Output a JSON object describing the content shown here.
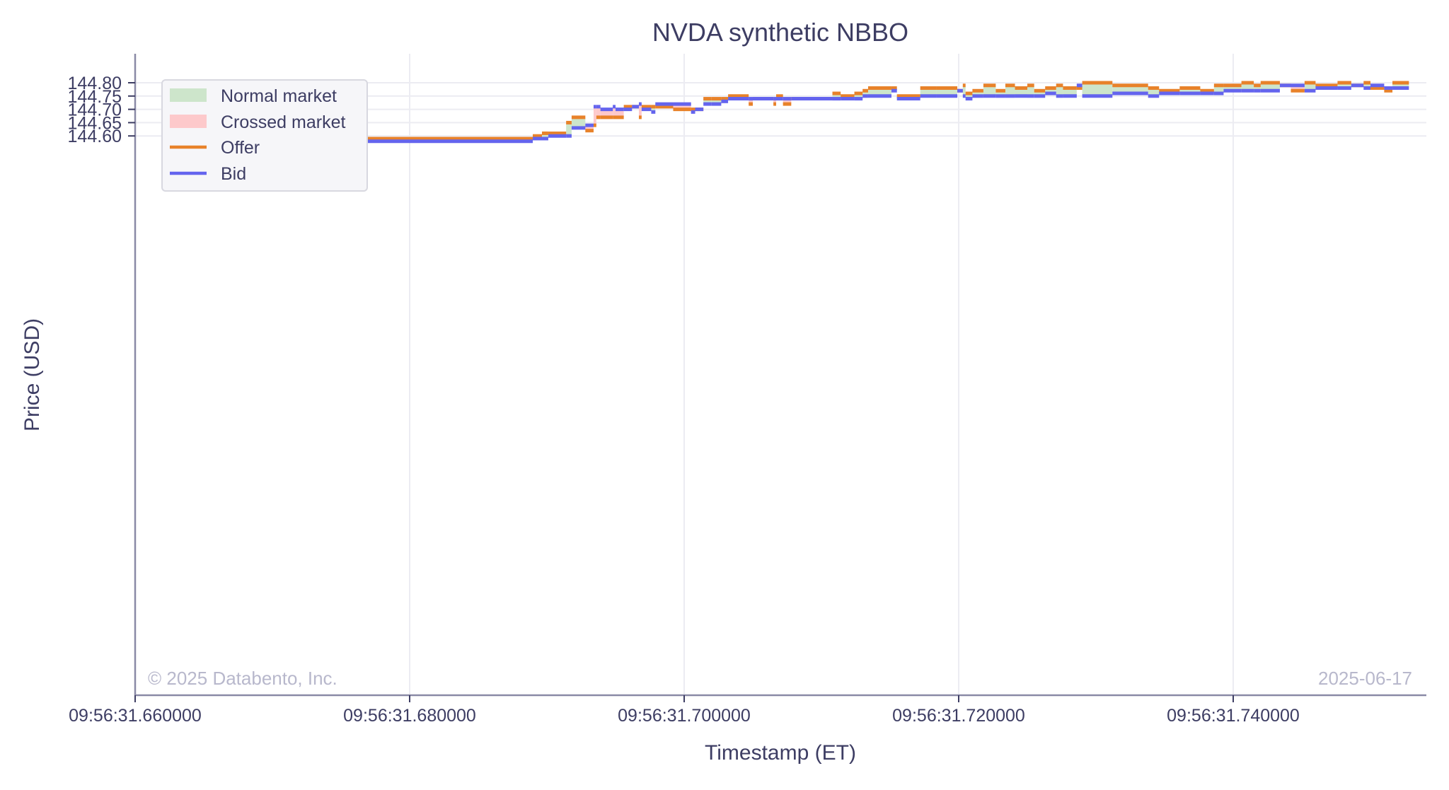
{
  "chart_data": {
    "type": "line",
    "subtype": "step-band",
    "title": "NVDA synthetic NBBO",
    "xlabel": "Timestamp (ET)",
    "ylabel": "Price (USD)",
    "x_ticks": [
      "09:56:31.660000",
      "09:56:31.680000",
      "09:56:31.700000",
      "09:56:31.720000",
      "09:56:31.740000"
    ],
    "x_tick_ms": [
      0,
      20,
      40,
      60,
      80
    ],
    "y_ticks": [
      "144.60",
      "144.65",
      "144.70",
      "144.75",
      "144.80"
    ],
    "y_tick_values": [
      144.6,
      144.65,
      144.7,
      144.75,
      144.8
    ],
    "xlim_ms": [
      0,
      94.2
    ],
    "ylim": [
      144.5655,
      144.8105
    ],
    "grid": true,
    "legend_position": "upper left",
    "legend": [
      {
        "label": "Normal market",
        "kind": "patch",
        "color": "#cde5cb"
      },
      {
        "label": "Crossed market",
        "kind": "patch",
        "color": "#fdc9cb"
      },
      {
        "label": "Offer",
        "kind": "line",
        "color": "#e8822a"
      },
      {
        "label": "Bid",
        "kind": "line",
        "color": "#6464ee"
      }
    ],
    "watermark_left": "© 2025 Databento, Inc.",
    "watermark_right": "2025-06-17",
    "x_origin": "09:56:31.660000",
    "segments_note": "[start_ms, end_ms, bid, offer] offsets from 09:56:31.660",
    "segments": [
      [
        4.28,
        28.97,
        144.58,
        144.59
      ],
      [
        28.97,
        29.64,
        144.59,
        144.6
      ],
      [
        29.64,
        30.1,
        144.59,
        144.61
      ],
      [
        30.1,
        31.4,
        144.6,
        144.61
      ],
      [
        31.4,
        31.8,
        144.6,
        144.65
      ],
      [
        31.8,
        32.8,
        144.63,
        144.67
      ],
      [
        32.8,
        33.4,
        144.64,
        144.62
      ],
      [
        33.4,
        33.6,
        144.71,
        144.64
      ],
      [
        33.6,
        33.9,
        144.71,
        144.67
      ],
      [
        33.9,
        34.8,
        144.7,
        144.67
      ],
      [
        34.8,
        35.0,
        144.71,
        144.67
      ],
      [
        35.0,
        35.6,
        144.7,
        144.67
      ],
      [
        35.6,
        36.2,
        144.7,
        144.71
      ],
      [
        36.2,
        36.7,
        144.71,
        144.71
      ],
      [
        36.7,
        36.9,
        144.72,
        144.67
      ],
      [
        36.9,
        37.6,
        144.7,
        144.71
      ],
      [
        37.6,
        37.9,
        144.69,
        144.71
      ],
      [
        37.9,
        39.2,
        144.72,
        144.71
      ],
      [
        39.2,
        40.5,
        144.72,
        144.7
      ],
      [
        40.5,
        40.8,
        144.69,
        144.7
      ],
      [
        40.8,
        41.4,
        144.7,
        144.7
      ],
      [
        41.4,
        42.0,
        144.72,
        144.74
      ],
      [
        42.0,
        42.7,
        144.72,
        144.74
      ],
      [
        42.7,
        43.2,
        144.73,
        144.74
      ],
      [
        43.2,
        44.7,
        144.74,
        144.75
      ],
      [
        44.7,
        45.0,
        144.74,
        144.72
      ],
      [
        45.0,
        46.5,
        144.74,
        144.74
      ],
      [
        46.5,
        46.7,
        144.74,
        144.72
      ],
      [
        46.7,
        47.2,
        144.74,
        144.75
      ],
      [
        47.2,
        47.8,
        144.74,
        144.72
      ],
      [
        47.8,
        50.8,
        144.74,
        144.74
      ],
      [
        50.8,
        51.4,
        144.74,
        144.76
      ],
      [
        51.4,
        52.4,
        144.74,
        144.75
      ],
      [
        52.4,
        53.0,
        144.74,
        144.76
      ],
      [
        53.0,
        53.4,
        144.75,
        144.77
      ],
      [
        53.4,
        55.1,
        144.75,
        144.78
      ],
      [
        55.1,
        55.5,
        144.77,
        144.78
      ],
      [
        55.5,
        57.2,
        144.74,
        144.75
      ],
      [
        57.2,
        58.4,
        144.75,
        144.78
      ],
      [
        58.4,
        59.9,
        144.75,
        144.78
      ],
      [
        59.9,
        60.3,
        144.77,
        144.77
      ],
      [
        60.3,
        60.5,
        144.75,
        144.79
      ],
      [
        60.5,
        61.0,
        144.74,
        144.76
      ],
      [
        61.0,
        61.8,
        144.75,
        144.77
      ],
      [
        61.8,
        62.7,
        144.75,
        144.79
      ],
      [
        62.7,
        63.4,
        144.75,
        144.77
      ],
      [
        63.4,
        64.1,
        144.75,
        144.79
      ],
      [
        64.1,
        65.0,
        144.75,
        144.78
      ],
      [
        65.0,
        65.5,
        144.75,
        144.79
      ],
      [
        65.5,
        66.3,
        144.75,
        144.77
      ],
      [
        66.3,
        67.1,
        144.76,
        144.78
      ],
      [
        67.1,
        67.6,
        144.75,
        144.79
      ],
      [
        67.6,
        68.6,
        144.75,
        144.78
      ],
      [
        68.6,
        69.0,
        144.79,
        144.78
      ],
      [
        69.0,
        71.2,
        144.75,
        144.8
      ],
      [
        71.2,
        73.8,
        144.76,
        144.79
      ],
      [
        73.8,
        74.6,
        144.75,
        144.78
      ],
      [
        74.6,
        76.1,
        144.76,
        144.77
      ],
      [
        76.1,
        77.6,
        144.76,
        144.78
      ],
      [
        77.6,
        78.6,
        144.76,
        144.77
      ],
      [
        78.6,
        79.3,
        144.76,
        144.79
      ],
      [
        79.3,
        80.6,
        144.77,
        144.79
      ],
      [
        80.6,
        81.5,
        144.77,
        144.8
      ],
      [
        81.5,
        82.0,
        144.77,
        144.79
      ],
      [
        82.0,
        83.4,
        144.77,
        144.8
      ],
      [
        83.4,
        84.2,
        144.79,
        144.79
      ],
      [
        84.2,
        85.2,
        144.79,
        144.77
      ],
      [
        85.2,
        86.0,
        144.77,
        144.8
      ],
      [
        86.0,
        87.6,
        144.78,
        144.79
      ],
      [
        87.6,
        88.6,
        144.78,
        144.8
      ],
      [
        88.6,
        89.5,
        144.79,
        144.79
      ],
      [
        89.5,
        90.0,
        144.78,
        144.8
      ],
      [
        90.0,
        91.0,
        144.79,
        144.78
      ],
      [
        91.0,
        91.6,
        144.78,
        144.77
      ],
      [
        91.6,
        92.8,
        144.78,
        144.8
      ]
    ]
  },
  "style": {
    "normal_fill": "#cde5cb",
    "crossed_fill": "#fdc9cb",
    "offer_color": "#e8822a",
    "bid_color": "#6464ee",
    "grid_color": "#ececf2",
    "axis_color": "#8a8aa6",
    "text_color": "#3d3d63",
    "watermark_color": "#b8b8cc",
    "legend_bg": "#f6f6f9",
    "legend_border": "#d8d8e0"
  }
}
